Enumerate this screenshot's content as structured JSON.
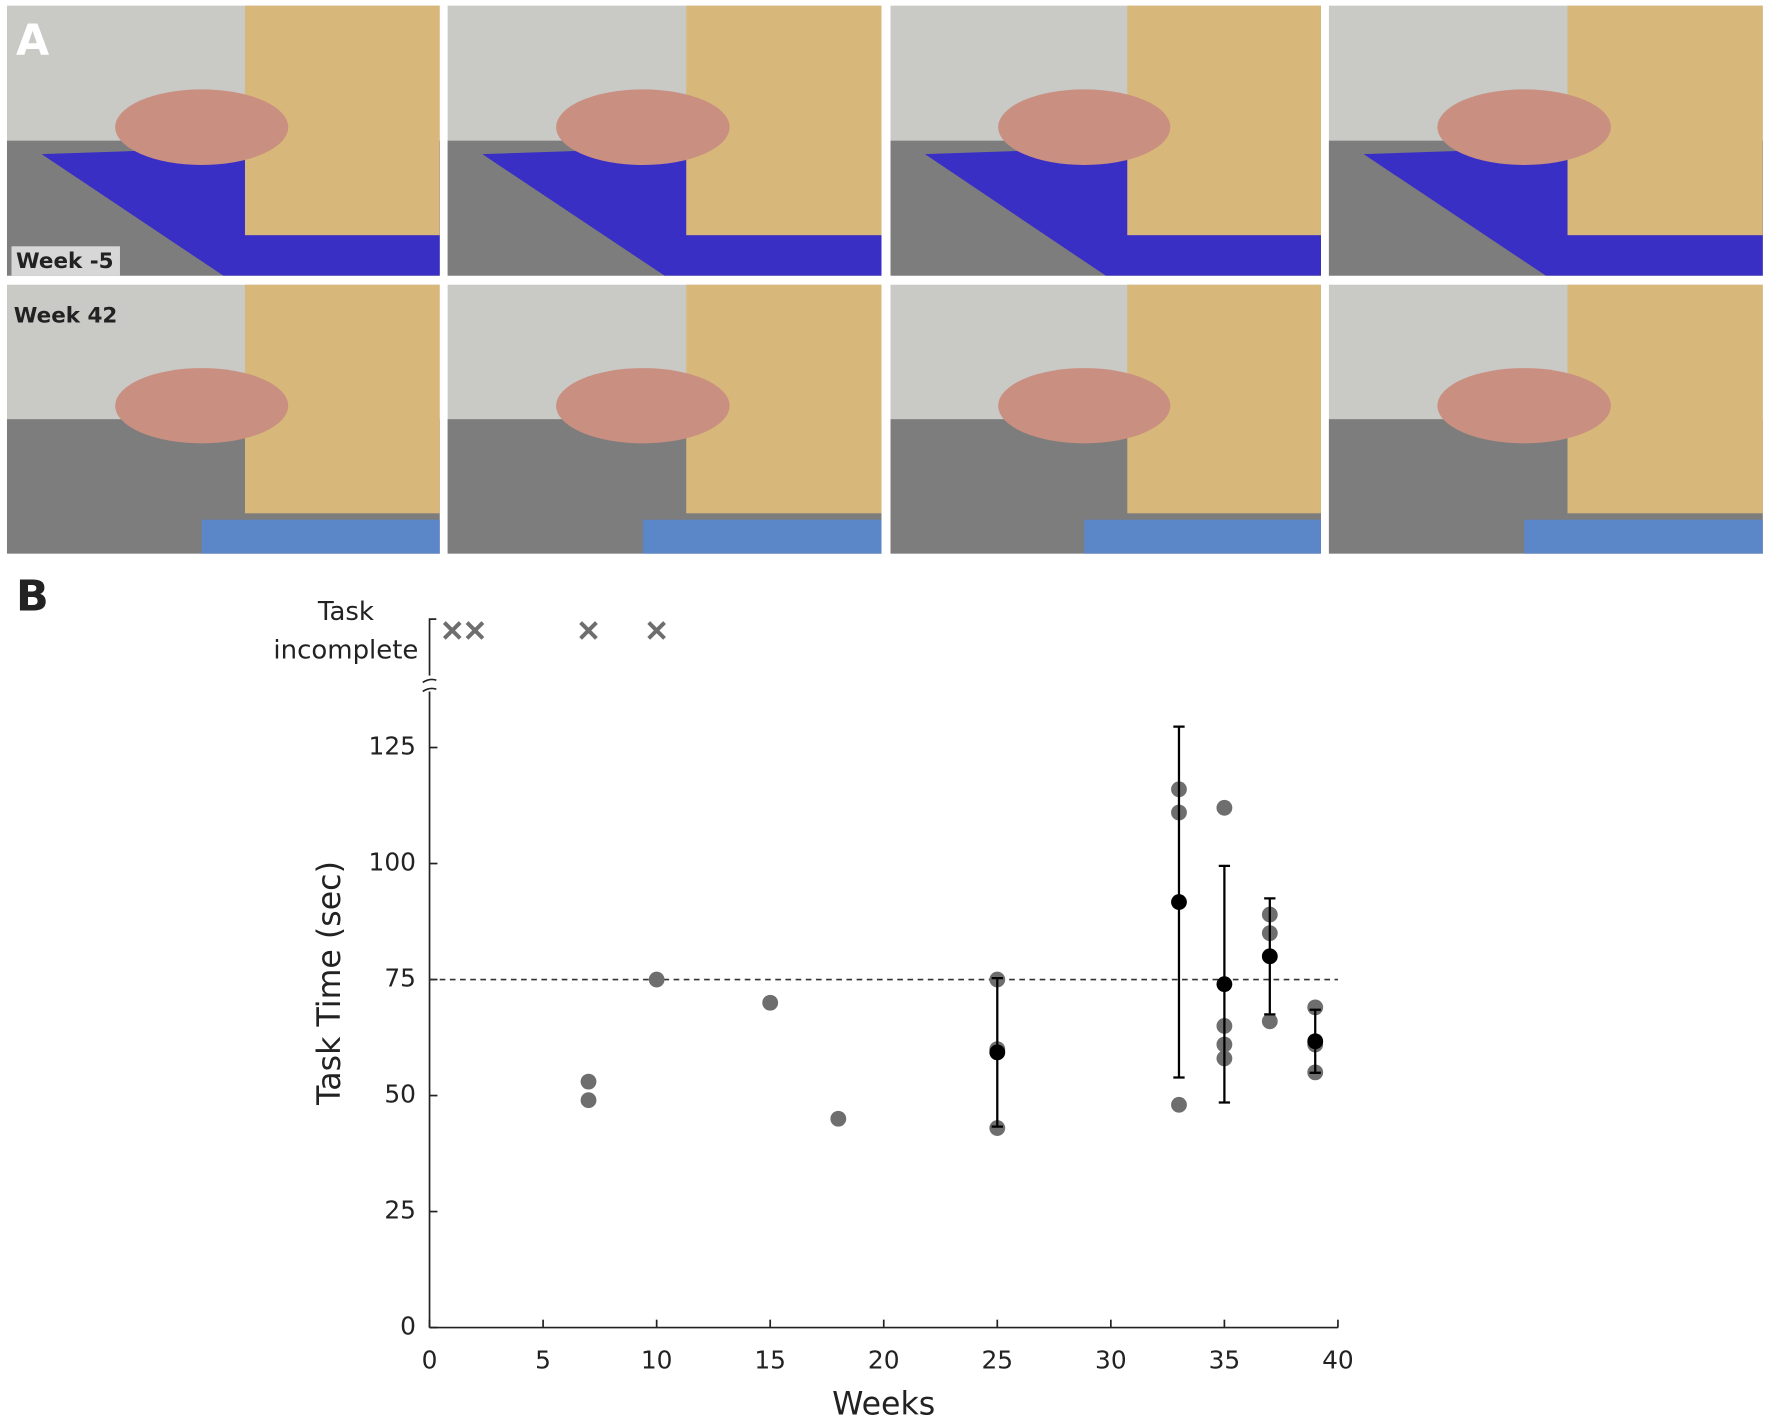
{
  "panel_a": {
    "label": "A",
    "row_labels": [
      "Week -5",
      "Week 42"
    ]
  },
  "chart_data": {
    "type": "scatter",
    "panel_label": "B",
    "xlabel": "Weeks",
    "ylabel": "Task Time (sec)",
    "xlim": [
      0,
      40
    ],
    "ylim": [
      0,
      140
    ],
    "xticks": [
      0,
      5,
      10,
      15,
      20,
      25,
      30,
      35,
      40
    ],
    "yticks": [
      0,
      25,
      50,
      75,
      100,
      125
    ],
    "reference_line": 75,
    "individual": {
      "color": "#6e6e6e",
      "x": [
        7,
        7,
        10,
        15,
        18,
        25,
        25,
        25,
        33,
        33,
        33,
        35,
        35,
        35,
        35,
        37,
        37,
        37,
        39,
        39,
        39
      ],
      "values": [
        53,
        49,
        75,
        70,
        45,
        75,
        60,
        43,
        116,
        111,
        48,
        112,
        65,
        61,
        58,
        89,
        85,
        66,
        69,
        61,
        55
      ]
    },
    "means": {
      "color": "#000000",
      "x": [
        25,
        33,
        35,
        37,
        39
      ],
      "values": [
        59.3,
        91.7,
        74,
        80,
        61.7
      ],
      "errors": [
        16,
        37.8,
        25.5,
        12.5,
        6.8
      ]
    },
    "incomplete": {
      "label": [
        "Task",
        "incomplete"
      ],
      "x": [
        1,
        2,
        7,
        10
      ],
      "color": "#6e6e6e"
    }
  }
}
